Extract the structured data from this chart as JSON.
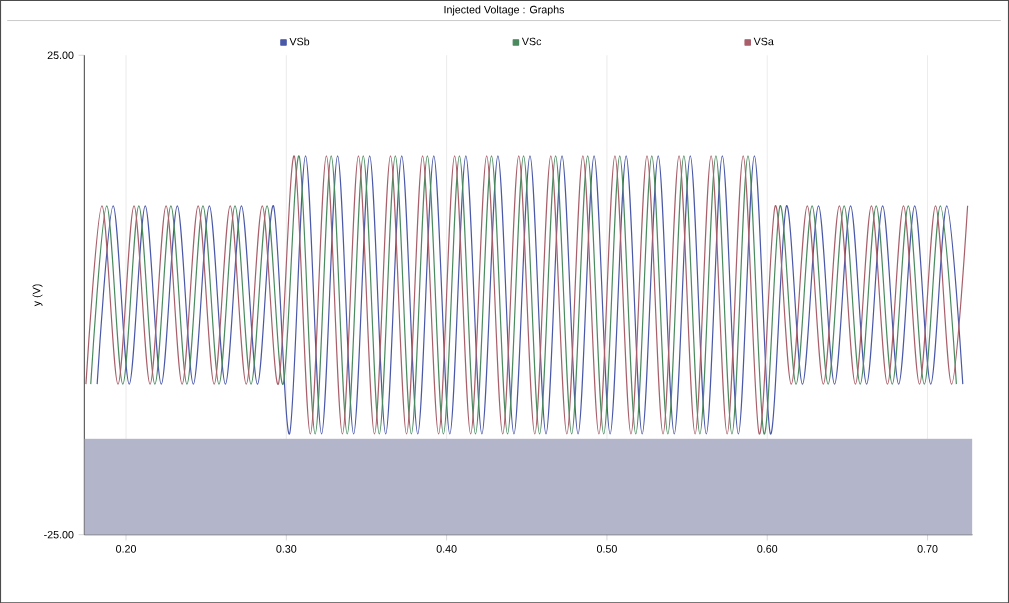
{
  "chart_data": {
    "type": "line",
    "title": "Injected Voltage : Graphs",
    "ylabel": "y (V)",
    "xlim": [
      0.174,
      0.728
    ],
    "ylim": [
      -25,
      25
    ],
    "xticks": [
      {
        "value": 0.2,
        "label": "0.20"
      },
      {
        "value": 0.3,
        "label": "0.30"
      },
      {
        "value": 0.4,
        "label": "0.40"
      },
      {
        "value": 0.5,
        "label": "0.50"
      },
      {
        "value": 0.6,
        "label": "0.60"
      },
      {
        "value": 0.7,
        "label": "0.70"
      }
    ],
    "yticks": [
      {
        "value": -25,
        "label": "-25.00"
      },
      {
        "value": 25,
        "label": "25.00"
      }
    ],
    "grid": "x",
    "legend": "top",
    "marker": "none",
    "line_style": "solid",
    "bands": [
      {
        "axis": "y",
        "from": -25,
        "to": -15,
        "color": "#b3b5cb"
      }
    ],
    "series": [
      {
        "name": "VSb",
        "color": "#4a58a8",
        "x": [
          0.182,
          0.192,
          0.202,
          0.212,
          0.222,
          0.232,
          0.242,
          0.252,
          0.262,
          0.272,
          0.282,
          0.292,
          0.302,
          0.312,
          0.322,
          0.332,
          0.342,
          0.352,
          0.362,
          0.372,
          0.382,
          0.392,
          0.402,
          0.412,
          0.422,
          0.432,
          0.442,
          0.452,
          0.462,
          0.472,
          0.482,
          0.492,
          0.502,
          0.512,
          0.522,
          0.532,
          0.542,
          0.552,
          0.562,
          0.572,
          0.582,
          0.592,
          0.602,
          0.612,
          0.622,
          0.632,
          0.642,
          0.652,
          0.662,
          0.672,
          0.682,
          0.692,
          0.702,
          0.712,
          0.722
        ],
        "values": [
          -9.3,
          9.3,
          -9.3,
          9.3,
          -9.3,
          9.3,
          -9.3,
          9.3,
          -9.3,
          9.3,
          -9.3,
          9.3,
          -14.5,
          14.5,
          -14.5,
          14.5,
          -14.5,
          14.5,
          -14.5,
          14.5,
          -14.5,
          14.5,
          -14.5,
          14.5,
          -14.5,
          14.5,
          -14.5,
          14.5,
          -14.5,
          14.5,
          -14.5,
          14.5,
          -14.5,
          14.5,
          -14.5,
          14.5,
          -14.5,
          14.5,
          -14.5,
          14.5,
          -14.5,
          14.5,
          -14.5,
          9.3,
          -9.3,
          9.3,
          -9.3,
          9.3,
          -9.3,
          9.3,
          -9.3,
          9.3,
          -9.3,
          9.3,
          -9.3
        ]
      },
      {
        "name": "VSc",
        "color": "#4a8a5e",
        "x": [
          0.178,
          0.188,
          0.198,
          0.208,
          0.218,
          0.228,
          0.238,
          0.248,
          0.258,
          0.268,
          0.278,
          0.288,
          0.298,
          0.308,
          0.318,
          0.328,
          0.338,
          0.348,
          0.358,
          0.368,
          0.378,
          0.388,
          0.398,
          0.408,
          0.418,
          0.428,
          0.438,
          0.448,
          0.458,
          0.468,
          0.478,
          0.488,
          0.498,
          0.508,
          0.518,
          0.528,
          0.538,
          0.548,
          0.558,
          0.568,
          0.578,
          0.588,
          0.598,
          0.608,
          0.618,
          0.628,
          0.638,
          0.648,
          0.658,
          0.668,
          0.678,
          0.688,
          0.698,
          0.708,
          0.718
        ],
        "values": [
          -9.3,
          9.3,
          -9.3,
          9.3,
          -9.3,
          9.3,
          -9.3,
          9.3,
          -9.3,
          9.3,
          -9.3,
          9.3,
          -9.3,
          14.5,
          -14.5,
          14.5,
          -14.5,
          14.5,
          -14.5,
          14.5,
          -14.5,
          14.5,
          -14.5,
          14.5,
          -14.5,
          14.5,
          -14.5,
          14.5,
          -14.5,
          14.5,
          -14.5,
          14.5,
          -14.5,
          14.5,
          -14.5,
          14.5,
          -14.5,
          14.5,
          -14.5,
          14.5,
          -14.5,
          14.5,
          -14.5,
          9.3,
          -9.3,
          9.3,
          -9.3,
          9.3,
          -9.3,
          9.3,
          -9.3,
          9.3,
          -9.3,
          9.3,
          -9.3
        ]
      },
      {
        "name": "VSa",
        "color": "#a85f6a",
        "x": [
          0.175,
          0.185,
          0.195,
          0.205,
          0.215,
          0.225,
          0.235,
          0.245,
          0.255,
          0.265,
          0.275,
          0.285,
          0.295,
          0.305,
          0.315,
          0.325,
          0.335,
          0.345,
          0.355,
          0.365,
          0.375,
          0.385,
          0.395,
          0.405,
          0.415,
          0.425,
          0.435,
          0.445,
          0.455,
          0.465,
          0.475,
          0.485,
          0.495,
          0.505,
          0.515,
          0.525,
          0.535,
          0.545,
          0.555,
          0.565,
          0.575,
          0.585,
          0.595,
          0.605,
          0.615,
          0.625,
          0.635,
          0.645,
          0.655,
          0.665,
          0.675,
          0.685,
          0.695,
          0.705,
          0.715,
          0.725
        ],
        "values": [
          -9.3,
          9.3,
          -9.3,
          9.3,
          -9.3,
          9.3,
          -9.3,
          9.3,
          -9.3,
          9.3,
          -9.3,
          9.3,
          -9.3,
          14.5,
          -14.5,
          14.5,
          -14.5,
          14.5,
          -14.5,
          14.5,
          -14.5,
          14.5,
          -14.5,
          14.5,
          -14.5,
          14.5,
          -14.5,
          14.5,
          -14.5,
          14.5,
          -14.5,
          14.5,
          -14.5,
          14.5,
          -14.5,
          14.5,
          -14.5,
          14.5,
          -14.5,
          14.5,
          -14.5,
          14.5,
          -14.5,
          9.3,
          -9.3,
          9.3,
          -9.3,
          9.3,
          -9.3,
          9.3,
          -9.3,
          9.3,
          -9.3,
          9.3,
          -9.3,
          9.3
        ]
      }
    ]
  }
}
